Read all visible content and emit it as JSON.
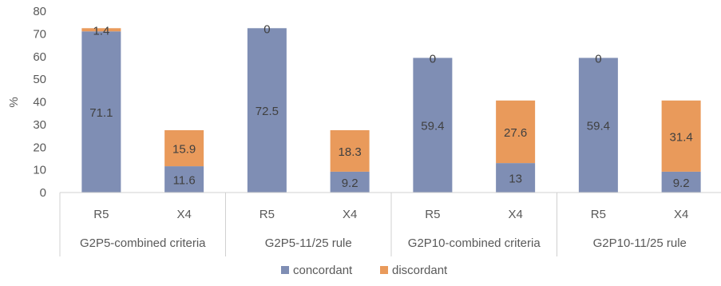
{
  "chart_data": {
    "type": "bar",
    "stacked": true,
    "ylabel": "%",
    "ylim": [
      0,
      80
    ],
    "yticks": [
      0,
      10,
      20,
      30,
      40,
      50,
      60,
      70,
      80
    ],
    "grid": false,
    "legend_position": "bottom",
    "groups": [
      "G2P5-combined criteria",
      "G2P5-11/25 rule",
      "G2P10-combined criteria",
      "G2P10-11/25 rule"
    ],
    "categories": [
      "R5",
      "X4",
      "R5",
      "X4",
      "R5",
      "X4",
      "R5",
      "X4"
    ],
    "series": [
      {
        "name": "concordant",
        "color": "#7F8EB4",
        "values": [
          71.1,
          11.6,
          72.5,
          9.2,
          59.4,
          13,
          59.4,
          9.2
        ],
        "labels": [
          "71.1",
          "11.6",
          "72.5",
          "9.2",
          "59.4",
          "13",
          "59.4",
          "9.2"
        ]
      },
      {
        "name": "discordant",
        "color": "#E99A5B",
        "values": [
          1.4,
          15.9,
          0,
          18.3,
          0,
          27.6,
          0,
          31.4
        ],
        "labels": [
          "1.4",
          "15.9",
          "0",
          "18.3",
          "0",
          "27.6",
          "0",
          "31.4"
        ]
      }
    ]
  }
}
